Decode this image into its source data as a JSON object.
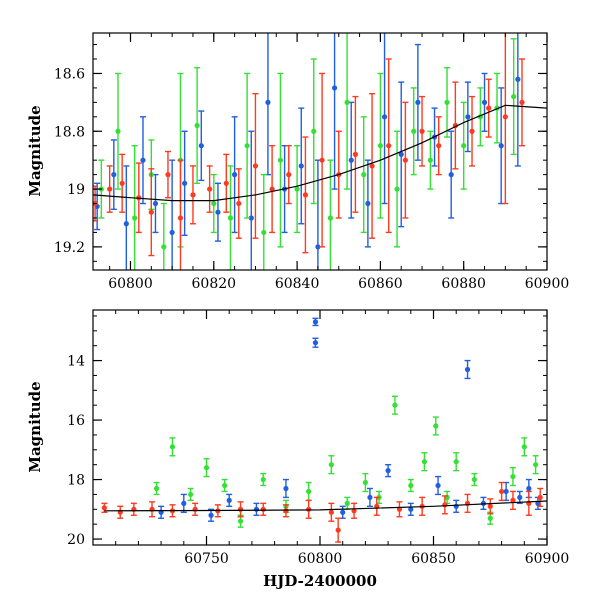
{
  "chart_data": [
    {
      "type": "scatter",
      "xlabel": "",
      "ylabel": "Magnitude",
      "xlim": [
        60791,
        60900
      ],
      "ylim": [
        19.28,
        18.46
      ],
      "y_inverted": true,
      "x_ticks": [
        60800,
        60820,
        60840,
        60860,
        60880,
        60900
      ],
      "y_ticks": [
        18.6,
        18.8,
        19,
        19.2
      ],
      "y_tick_labels": [
        "18.6",
        "18.8",
        "19",
        "19.2"
      ],
      "grid": false,
      "series_colors": [
        "#1f5fe0",
        "#33e033",
        "#ff3a1e"
      ],
      "trend_curve": {
        "color": "#000000",
        "x": [
          60791,
          60800,
          60810,
          60820,
          60830,
          60840,
          60850,
          60860,
          60870,
          60880,
          60890,
          60900
        ],
        "y": [
          19.02,
          19.03,
          19.04,
          19.04,
          19.02,
          18.99,
          18.95,
          18.9,
          18.84,
          18.77,
          18.71,
          18.72
        ]
      },
      "series": [
        {
          "x": [
            60792,
            60796,
            60799,
            60803,
            60806,
            60810,
            60813,
            60817,
            60821,
            60825,
            60829,
            60833,
            60837,
            60841,
            60845,
            60849,
            60853,
            60857,
            60861,
            60865,
            60869,
            60873,
            60877,
            60881,
            60885,
            60889,
            60893
          ],
          "y": [
            19.06,
            18.95,
            19.12,
            18.9,
            19.05,
            19.15,
            18.98,
            18.85,
            19.08,
            18.95,
            19.1,
            18.7,
            19.0,
            18.92,
            19.2,
            18.65,
            18.9,
            19.05,
            18.75,
            18.88,
            18.7,
            18.82,
            18.95,
            18.75,
            18.7,
            18.85,
            18.62
          ],
          "err": [
            0.08,
            0.12,
            0.2,
            0.15,
            0.1,
            0.25,
            0.18,
            0.12,
            0.1,
            0.2,
            0.3,
            0.25,
            0.15,
            0.2,
            0.3,
            0.35,
            0.2,
            0.15,
            0.3,
            0.25,
            0.2,
            0.1,
            0.15,
            0.12,
            0.1,
            0.2,
            0.3
          ]
        },
        {
          "x": [
            60793,
            60797,
            60801,
            60805,
            60808,
            60812,
            60816,
            60820,
            60824,
            60828,
            60832,
            60836,
            60840,
            60844,
            60848,
            60852,
            60856,
            60860,
            60864,
            60868,
            60872,
            60876,
            60880,
            60884,
            60888,
            60892
          ],
          "y": [
            19.0,
            18.8,
            19.1,
            18.95,
            19.2,
            18.9,
            18.78,
            19.05,
            19.1,
            18.85,
            19.15,
            18.9,
            19.0,
            18.8,
            19.1,
            18.7,
            18.95,
            18.85,
            19.0,
            18.8,
            18.9,
            18.7,
            18.85,
            18.75,
            18.72,
            18.68
          ],
          "err": [
            0.1,
            0.2,
            0.25,
            0.12,
            0.15,
            0.3,
            0.2,
            0.1,
            0.18,
            0.25,
            0.2,
            0.3,
            0.15,
            0.25,
            0.2,
            0.3,
            0.2,
            0.25,
            0.2,
            0.15,
            0.1,
            0.12,
            0.15,
            0.1,
            0.12,
            0.2
          ]
        },
        {
          "x": [
            60791.5,
            60795,
            60798,
            60802,
            60805,
            60809,
            60812,
            60815,
            60819,
            60823,
            60826,
            60830,
            60834,
            60838,
            60842,
            60846,
            60850,
            60854,
            60858,
            60862,
            60866,
            60870,
            60874,
            60878,
            60882,
            60886,
            60890,
            60894
          ],
          "y": [
            19.05,
            19.0,
            18.98,
            19.03,
            19.08,
            18.95,
            19.1,
            19.02,
            19.0,
            18.98,
            19.05,
            18.92,
            19.0,
            18.95,
            19.02,
            18.9,
            18.95,
            18.88,
            18.92,
            18.85,
            18.9,
            18.8,
            18.85,
            18.78,
            18.8,
            18.72,
            18.75,
            18.7
          ],
          "err": [
            0.06,
            0.08,
            0.1,
            0.12,
            0.15,
            0.08,
            0.2,
            0.1,
            0.08,
            0.1,
            0.12,
            0.25,
            0.15,
            0.1,
            0.2,
            0.3,
            0.15,
            0.2,
            0.25,
            0.3,
            0.2,
            0.12,
            0.1,
            0.15,
            0.12,
            0.1,
            0.3,
            0.15
          ]
        }
      ]
    },
    {
      "type": "scatter",
      "xlabel": "HJD-2400000",
      "ylabel": "Magnitude",
      "xlim": [
        60700,
        60900
      ],
      "ylim": [
        20.2,
        12.3
      ],
      "y_inverted": true,
      "x_ticks": [
        60750,
        60800,
        60850,
        60900
      ],
      "y_ticks": [
        14,
        16,
        18,
        20
      ],
      "y_tick_labels": [
        "14",
        "16",
        "18",
        "20"
      ],
      "grid": false,
      "series_colors": [
        "#1f5fe0",
        "#33e033",
        "#ff3a1e"
      ],
      "trend_curve": {
        "color": "#000000",
        "x": [
          60705,
          60750,
          60800,
          60850,
          60900
        ],
        "y": [
          19.05,
          19.04,
          19.02,
          18.9,
          18.72
        ]
      },
      "series": [
        {
          "x": [
            60730,
            60740,
            60752,
            60760,
            60772,
            60785,
            60798,
            60798,
            60810,
            60822,
            60830,
            60840,
            60852,
            60860,
            60865,
            60872,
            60882,
            60888,
            60892,
            60896
          ],
          "y": [
            19.1,
            18.8,
            19.2,
            18.7,
            19.0,
            18.3,
            12.7,
            13.4,
            19.1,
            18.6,
            17.7,
            19.0,
            18.2,
            18.9,
            14.3,
            18.8,
            18.4,
            18.6,
            18.3,
            18.8
          ],
          "err": [
            0.2,
            0.3,
            0.2,
            0.2,
            0.2,
            0.3,
            0.12,
            0.15,
            0.2,
            0.3,
            0.2,
            0.2,
            0.3,
            0.2,
            0.3,
            0.2,
            0.3,
            0.2,
            0.3,
            0.2
          ]
        },
        {
          "x": [
            60728,
            60735,
            60743,
            60750,
            60758,
            60765,
            60775,
            60785,
            60795,
            60805,
            60812,
            60820,
            60826,
            60833,
            60840,
            60846,
            60851,
            60856,
            60860,
            60868,
            60875,
            60885,
            60890,
            60895
          ],
          "y": [
            18.3,
            16.9,
            18.5,
            17.6,
            18.2,
            19.4,
            18.0,
            18.9,
            18.4,
            17.5,
            18.8,
            18.1,
            18.6,
            15.5,
            18.2,
            17.4,
            16.2,
            18.6,
            17.4,
            18.0,
            19.3,
            17.9,
            16.9,
            17.5
          ],
          "err": [
            0.2,
            0.3,
            0.2,
            0.3,
            0.2,
            0.2,
            0.2,
            0.2,
            0.3,
            0.3,
            0.2,
            0.3,
            0.2,
            0.3,
            0.2,
            0.3,
            0.3,
            0.2,
            0.3,
            0.2,
            0.2,
            0.3,
            0.3,
            0.3
          ]
        },
        {
          "x": [
            60705,
            60712,
            60718,
            60726,
            60735,
            60745,
            60755,
            60765,
            60775,
            60785,
            60795,
            60805,
            60808,
            60815,
            60825,
            60835,
            60845,
            60855,
            60865,
            60875,
            60880,
            60885,
            60892,
            60897
          ],
          "y": [
            18.95,
            19.1,
            19.0,
            19.0,
            19.05,
            19.0,
            19.05,
            19.0,
            19.0,
            19.05,
            19.0,
            19.1,
            19.7,
            19.05,
            18.9,
            19.0,
            18.9,
            18.85,
            18.8,
            18.9,
            18.4,
            18.7,
            18.8,
            18.6
          ],
          "err": [
            0.15,
            0.2,
            0.2,
            0.25,
            0.2,
            0.2,
            0.2,
            0.25,
            0.2,
            0.2,
            0.3,
            0.3,
            0.4,
            0.25,
            0.3,
            0.25,
            0.3,
            0.3,
            0.3,
            0.25,
            0.3,
            0.3,
            0.4,
            0.3
          ]
        }
      ]
    }
  ]
}
